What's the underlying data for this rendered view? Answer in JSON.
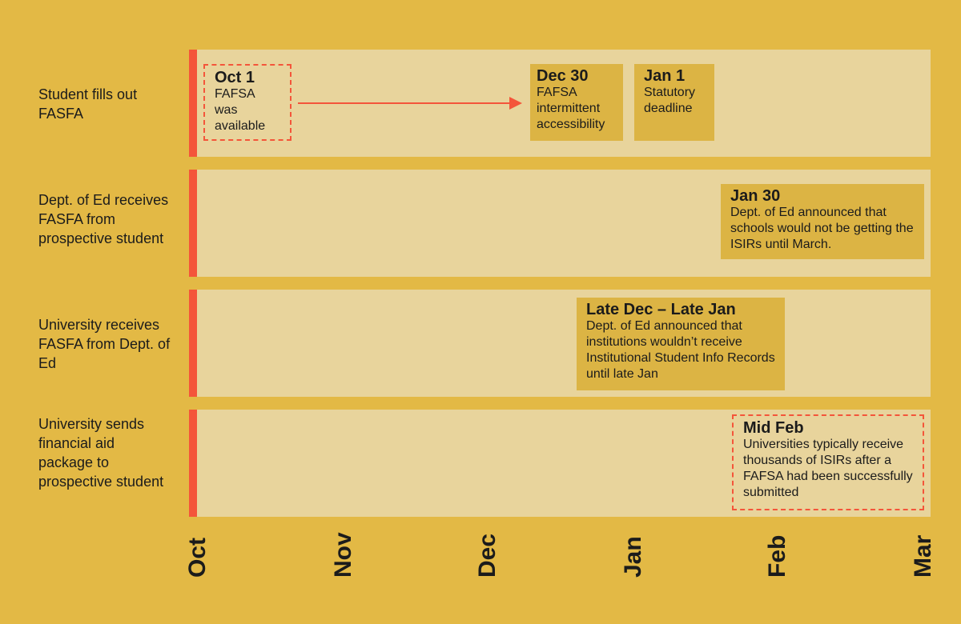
{
  "rows": [
    {
      "label": "Student fills out FASFA"
    },
    {
      "label": "Dept. of Ed receives FASFA from prospective student"
    },
    {
      "label": "University receives FASFA from Dept. of Ed"
    },
    {
      "label": "University sends financial aid package to prospective student"
    }
  ],
  "events": [
    {
      "date": "Oct 1",
      "text": "FAFSA was available"
    },
    {
      "date": "Dec 30",
      "text": "FAFSA intermittent accessibility"
    },
    {
      "date": "Jan 1",
      "text": "Statutory deadline"
    },
    {
      "date": "Jan 30",
      "text": "Dept. of Ed announced that schools would not be getting the ISIRs until March."
    },
    {
      "date": "Late Dec – Late Jan",
      "text": "Dept. of Ed announced that institutions wouldn’t receive Institutional Student Info Records until late Jan"
    },
    {
      "date": "Mid Feb",
      "text": "Universities typically receive thousands of ISIRs after a FAFSA had been successfully submitted"
    }
  ],
  "months": [
    "Oct",
    "Nov",
    "Dec",
    "Jan",
    "Feb",
    "Mar"
  ]
}
